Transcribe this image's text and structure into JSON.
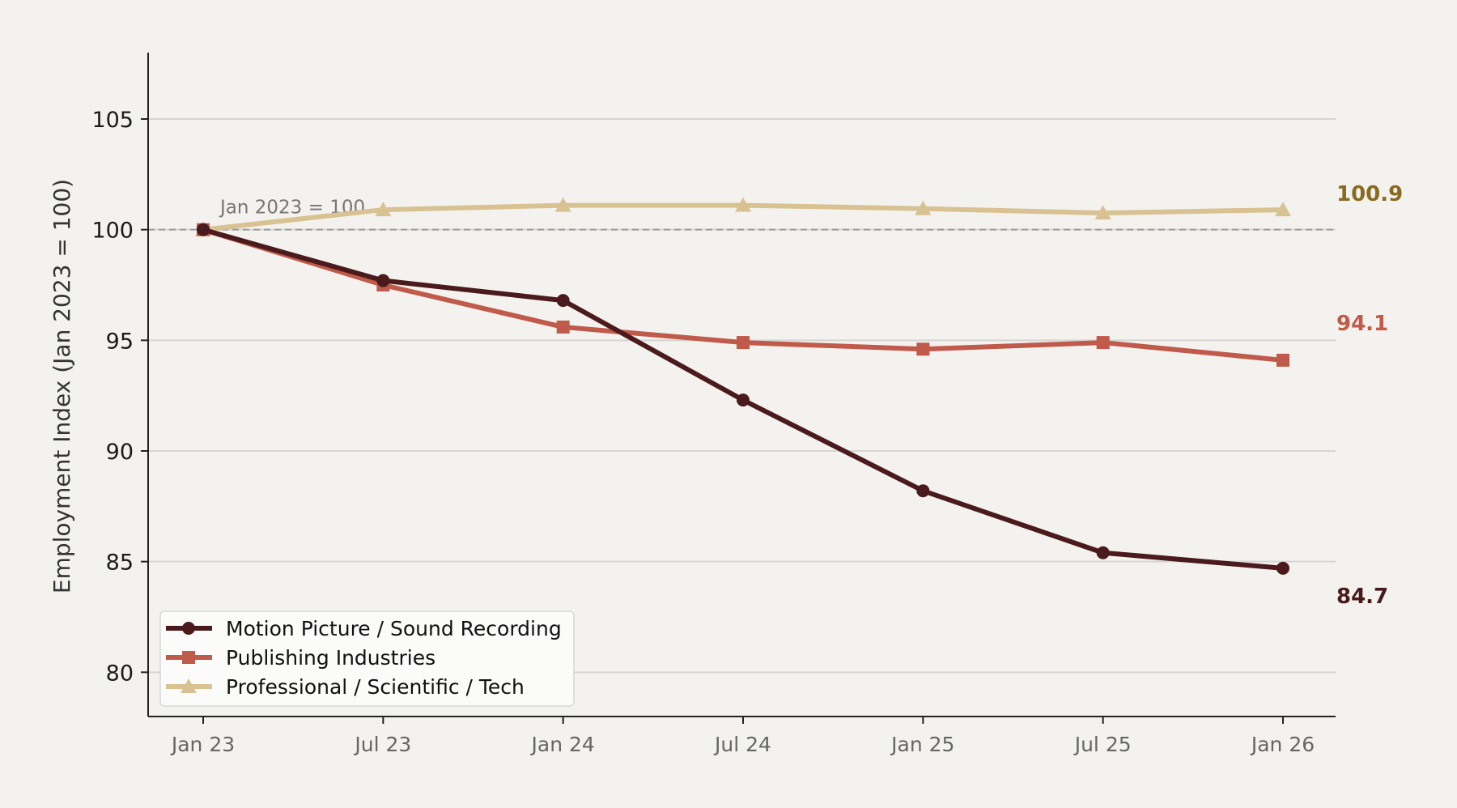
{
  "chart_data": {
    "type": "line",
    "title": "",
    "xlabel": "",
    "ylabel": "Employment Index (Jan 2023 = 100)",
    "categories": [
      "Jan 23",
      "Jul 23",
      "Jan 24",
      "Jul 24",
      "Jan 25",
      "Jul 25",
      "Jan 26"
    ],
    "ylim": [
      78,
      108
    ],
    "yticks": [
      80,
      85,
      90,
      95,
      100,
      105
    ],
    "grid": "horizontal",
    "reference_line": {
      "value": 100,
      "label": "Jan 2023 = 100"
    },
    "legend_position": "lower-left",
    "series": [
      {
        "name": "Motion Picture / Sound Recording",
        "values": [
          100,
          97.7,
          96.8,
          92.3,
          88.2,
          85.4,
          84.7
        ],
        "marker": "circle",
        "color": "#4a1a1c",
        "end_label": "84.7"
      },
      {
        "name": "Publishing Industries",
        "values": [
          100,
          97.5,
          95.6,
          94.9,
          94.6,
          94.9,
          94.1
        ],
        "marker": "square",
        "color": "#c05a4a",
        "end_label": "94.1"
      },
      {
        "name": "Professional / Scientific / Tech",
        "values": [
          100,
          100.9,
          101.1,
          101.1,
          100.95,
          100.75,
          100.9
        ],
        "marker": "triangle",
        "color": "#d9c292",
        "end_label": "100.9",
        "end_label_color": "#8a6a1e"
      }
    ]
  }
}
